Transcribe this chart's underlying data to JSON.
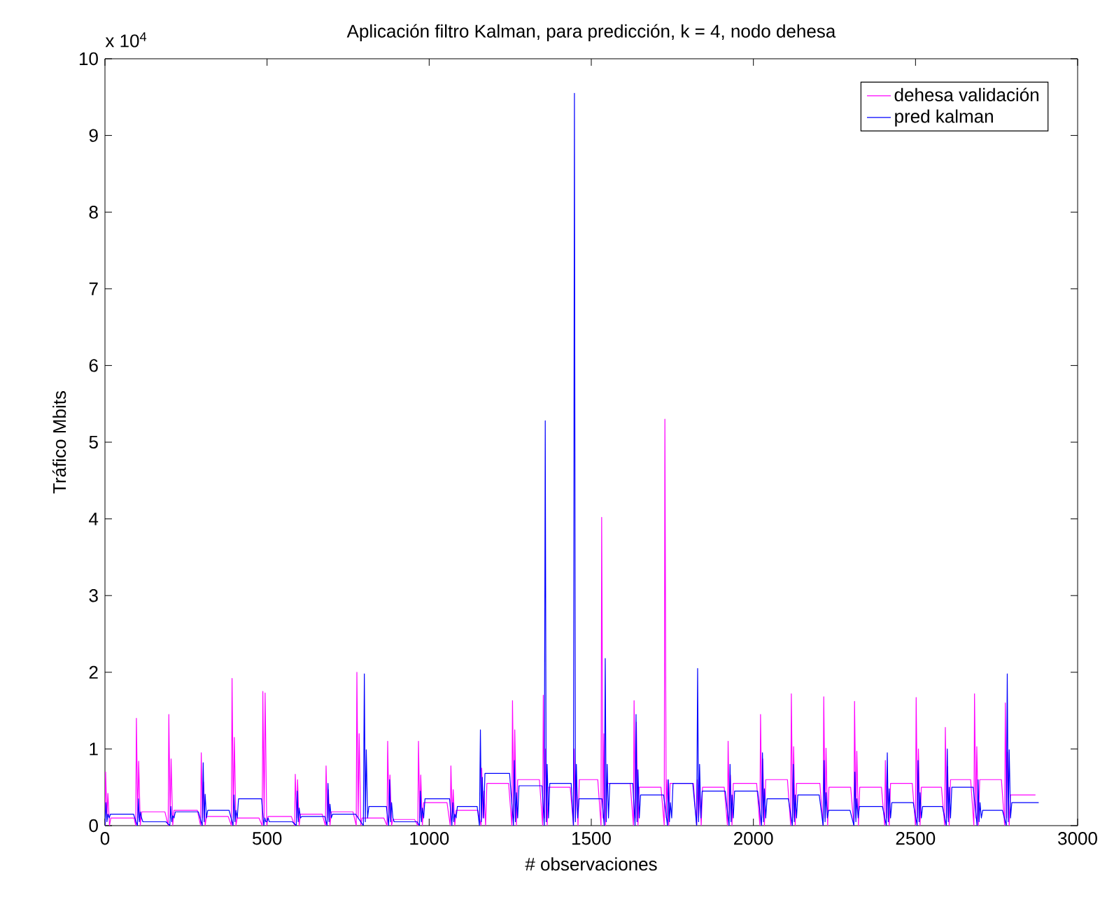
{
  "chart_data": {
    "type": "line",
    "title": "Aplicación filtro Kalman, para predicción, k = 4, nodo dehesa",
    "xlabel": "# observaciones",
    "ylabel": "Tráfico Mbits",
    "annotations": [
      "x 10$^{4}$"
    ],
    "xlim": [
      0,
      3000
    ],
    "xticks": [
      0,
      500,
      1000,
      1500,
      2000,
      2500,
      3000
    ],
    "ylim": [
      0,
      10
    ],
    "yticks": [
      0,
      1,
      2,
      3,
      4,
      5,
      6,
      7,
      8,
      9,
      10
    ],
    "legend": "top right",
    "series": [
      {
        "name": "dehesa validación",
        "color": "#ff00ff",
        "x": [
          0,
          2,
          6,
          9,
          14,
          18,
          90,
          95,
          97,
          101,
          104,
          109,
          113,
          185,
          195,
          197,
          201,
          204,
          209,
          213,
          285,
          295,
          297,
          301,
          304,
          309,
          313,
          380,
          390,
          392,
          396,
          399,
          404,
          408,
          475,
          485,
          487,
          491,
          494,
          499,
          503,
          575,
          585,
          587,
          591,
          594,
          599,
          603,
          670,
          680,
          682,
          686,
          689,
          694,
          698,
          765,
          775,
          777,
          781,
          784,
          789,
          793,
          860,
          870,
          872,
          876,
          879,
          884,
          888,
          955,
          965,
          967,
          971,
          974,
          979,
          983,
          1055,
          1065,
          1067,
          1071,
          1074,
          1079,
          1083,
          1150,
          1160,
          1162,
          1166,
          1169,
          1174,
          1178,
          1245,
          1255,
          1257,
          1261,
          1264,
          1269,
          1273,
          1340,
          1350,
          1352,
          1356,
          1359,
          1364,
          1368,
          1435,
          1445,
          1447,
          1451,
          1454,
          1459,
          1463,
          1520,
          1530,
          1532,
          1536,
          1539,
          1544,
          1548,
          1620,
          1630,
          1632,
          1636,
          1639,
          1644,
          1648,
          1715,
          1725,
          1727,
          1731,
          1734,
          1739,
          1743,
          1815,
          1825,
          1827,
          1831,
          1834,
          1839,
          1843,
          1910,
          1920,
          1922,
          1926,
          1929,
          1934,
          1938,
          2010,
          2020,
          2022,
          2026,
          2029,
          2034,
          2038,
          2105,
          2115,
          2117,
          2121,
          2124,
          2129,
          2133,
          2205,
          2215,
          2217,
          2221,
          2224,
          2229,
          2233,
          2300,
          2310,
          2312,
          2316,
          2319,
          2324,
          2328,
          2395,
          2405,
          2407,
          2411,
          2414,
          2419,
          2423,
          2490,
          2500,
          2502,
          2506,
          2509,
          2514,
          2518,
          2580,
          2590,
          2592,
          2596,
          2599,
          2604,
          2608,
          2670,
          2680,
          2682,
          2686,
          2689,
          2694,
          2698,
          2765,
          2775,
          2777,
          2781,
          2784,
          2789,
          2793,
          2870
        ],
        "values": [
          0,
          0.7,
          0.1,
          0.42,
          0,
          0.1,
          0.1,
          0,
          1.4,
          0.1,
          0.84,
          0,
          0.18,
          0.18,
          0,
          1.45,
          0.1,
          0.87,
          0,
          0.2,
          0.2,
          0,
          0.95,
          0.1,
          0.57,
          0,
          0.12,
          0.12,
          0,
          1.92,
          0.1,
          1.15,
          0,
          0.1,
          0.1,
          0,
          1.75,
          0.1,
          1.73,
          0,
          0.12,
          0.12,
          0,
          0.67,
          0.1,
          0.6,
          0,
          0.15,
          0.15,
          0,
          0.78,
          0.1,
          0.47,
          0,
          0.18,
          0.18,
          0,
          2.0,
          0.1,
          1.2,
          0,
          0.1,
          0.1,
          0,
          1.1,
          0.1,
          0.66,
          0,
          0.08,
          0.08,
          0,
          1.1,
          0.1,
          0.66,
          0,
          0.3,
          0.3,
          0,
          0.78,
          0.1,
          0.47,
          0,
          0.2,
          0.2,
          0,
          0.75,
          0.1,
          0.45,
          0,
          0.55,
          0.55,
          0,
          1.63,
          0.1,
          1.25,
          0,
          0.6,
          0.6,
          0,
          1.7,
          0.1,
          1.0,
          0,
          0.5,
          0.5,
          0,
          1.0,
          0.1,
          0.6,
          0,
          0.6,
          0.6,
          0,
          4.02,
          0.1,
          1.2,
          0,
          0.55,
          0.55,
          0,
          1.63,
          0.1,
          1.35,
          0,
          0.5,
          0.5,
          0,
          5.3,
          0.1,
          0.6,
          0,
          0.55,
          0.55,
          0,
          0.6,
          0.1,
          0.5,
          0,
          0.5,
          0.5,
          0,
          1.1,
          0.1,
          0.66,
          0,
          0.55,
          0.55,
          0,
          1.45,
          0.1,
          0.87,
          0,
          0.6,
          0.6,
          0,
          1.72,
          0.1,
          1.03,
          0,
          0.55,
          0.55,
          0,
          1.68,
          0.1,
          1.01,
          0,
          0.5,
          0.5,
          0,
          1.62,
          0.1,
          0.97,
          0,
          0.5,
          0.5,
          0,
          0.85,
          0.1,
          0.51,
          0,
          0.55,
          0.55,
          0,
          1.67,
          0.1,
          1.0,
          0,
          0.5,
          0.5,
          0,
          1.28,
          0.1,
          0.77,
          0,
          0.6,
          0.6,
          0,
          1.72,
          0.1,
          1.03,
          0,
          0.6,
          0.6,
          0,
          1.6,
          0.1,
          0.96,
          0,
          0.4,
          0.4
        ]
      },
      {
        "name": "pred kalman",
        "color": "#0000ff",
        "x": [
          0,
          3,
          6,
          9,
          13,
          17,
          88,
          100,
          103,
          106,
          109,
          113,
          117,
          188,
          200,
          203,
          206,
          209,
          213,
          217,
          288,
          300,
          303,
          306,
          309,
          313,
          317,
          383,
          395,
          398,
          401,
          404,
          408,
          412,
          483,
          490,
          493,
          496,
          499,
          503,
          507,
          578,
          590,
          593,
          596,
          599,
          603,
          607,
          678,
          685,
          688,
          691,
          694,
          698,
          702,
          773,
          797,
          800,
          803,
          806,
          810,
          814,
          868,
          875,
          878,
          881,
          884,
          888,
          892,
          963,
          970,
          973,
          976,
          979,
          983,
          987,
          1063,
          1070,
          1073,
          1076,
          1079,
          1083,
          1087,
          1148,
          1155,
          1158,
          1161,
          1164,
          1168,
          1172,
          1248,
          1260,
          1263,
          1266,
          1269,
          1273,
          1277,
          1348,
          1355,
          1358,
          1361,
          1364,
          1368,
          1372,
          1438,
          1445,
          1448,
          1451,
          1454,
          1458,
          1462,
          1533,
          1540,
          1543,
          1546,
          1549,
          1553,
          1557,
          1628,
          1635,
          1638,
          1641,
          1644,
          1648,
          1652,
          1723,
          1735,
          1738,
          1741,
          1744,
          1748,
          1752,
          1813,
          1825,
          1828,
          1831,
          1834,
          1838,
          1842,
          1913,
          1925,
          1928,
          1931,
          1934,
          1938,
          1942,
          2013,
          2025,
          2028,
          2031,
          2034,
          2038,
          2042,
          2108,
          2120,
          2123,
          2126,
          2129,
          2133,
          2137,
          2203,
          2215,
          2218,
          2221,
          2224,
          2228,
          2232,
          2298,
          2310,
          2313,
          2316,
          2319,
          2323,
          2327,
          2398,
          2410,
          2413,
          2416,
          2419,
          2423,
          2427,
          2493,
          2505,
          2508,
          2511,
          2514,
          2518,
          2522,
          2583,
          2595,
          2598,
          2601,
          2604,
          2608,
          2612,
          2678,
          2690,
          2693,
          2696,
          2699,
          2703,
          2707,
          2768,
          2780,
          2783,
          2786,
          2789,
          2793,
          2797,
          2880
        ],
        "values": [
          0,
          0.3,
          0.05,
          0.15,
          0.1,
          0.15,
          0.15,
          0,
          0.35,
          0.05,
          0.18,
          0.1,
          0.05,
          0.05,
          0,
          0.25,
          0.05,
          0.13,
          0.1,
          0.18,
          0.18,
          0,
          0.82,
          0.05,
          0.41,
          0.1,
          0.2,
          0.2,
          0,
          0.4,
          0.05,
          0.2,
          0.1,
          0.35,
          0.35,
          0,
          0.1,
          0.05,
          0.05,
          0.1,
          0.05,
          0.05,
          0,
          0.45,
          0.05,
          0.23,
          0.1,
          0.12,
          0.12,
          0,
          0.55,
          0.05,
          0.28,
          0.1,
          0.15,
          0.15,
          0,
          1.98,
          0.05,
          0.99,
          0.1,
          0.25,
          0.25,
          0,
          0.6,
          0.05,
          0.3,
          0.1,
          0.05,
          0.05,
          0,
          0.45,
          0.05,
          0.23,
          0.1,
          0.35,
          0.35,
          0,
          0.3,
          0.05,
          0.15,
          0.1,
          0.25,
          0.25,
          0,
          1.25,
          0.05,
          0.63,
          0.1,
          0.68,
          0.68,
          0,
          0.85,
          0.05,
          0.43,
          0.1,
          0.52,
          0.52,
          0,
          5.28,
          0.05,
          0.8,
          0.1,
          0.55,
          0.55,
          0,
          9.55,
          0.05,
          0.8,
          0.1,
          0.35,
          0.35,
          0,
          2.18,
          0.05,
          0.8,
          0.1,
          0.55,
          0.55,
          0,
          1.45,
          0.05,
          0.73,
          0.1,
          0.4,
          0.4,
          0,
          0.6,
          0.05,
          0.3,
          0.1,
          0.55,
          0.55,
          0,
          2.05,
          0.05,
          0.8,
          0.1,
          0.45,
          0.45,
          0,
          0.8,
          0.05,
          0.4,
          0.1,
          0.45,
          0.45,
          0,
          0.95,
          0.05,
          0.48,
          0.1,
          0.35,
          0.35,
          0,
          0.8,
          0.05,
          0.4,
          0.1,
          0.4,
          0.4,
          0,
          0.85,
          0.05,
          0.43,
          0.1,
          0.2,
          0.2,
          0,
          0.7,
          0.05,
          0.35,
          0.1,
          0.25,
          0.25,
          0,
          0.95,
          0.05,
          0.48,
          0.1,
          0.3,
          0.3,
          0,
          0.85,
          0.05,
          0.43,
          0.1,
          0.25,
          0.25,
          0,
          1.0,
          0.05,
          0.5,
          0.1,
          0.5,
          0.5,
          0,
          0.6,
          0.05,
          0.3,
          0.1,
          0.2,
          0.2,
          0,
          1.98,
          0.05,
          0.99,
          0.1,
          0.3,
          0.3
        ]
      }
    ]
  }
}
